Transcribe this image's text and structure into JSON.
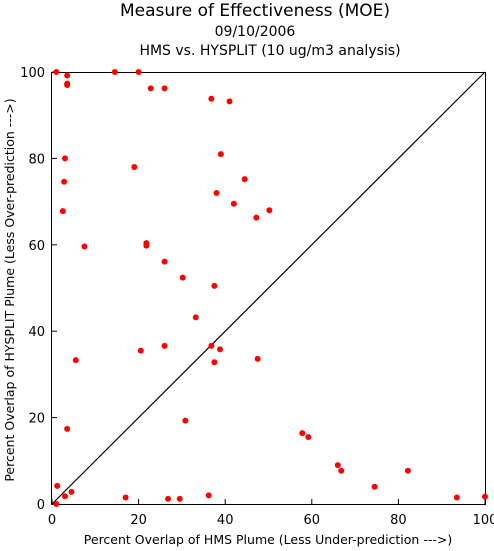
{
  "chart_data": {
    "type": "scatter",
    "title": "Measure of Effectiveness (MOE)",
    "subtitle_date": "09/10/2006",
    "subtitle_analysis": "HMS vs. HYSPLIT  (10 ug/m3 analysis)",
    "xlabel": "Percent Overlap of HMS Plume (Less Under-prediction --->)",
    "ylabel": "Percent Overlap of HYSPLIT Plume (Less Over-prediction --->)",
    "xlim": [
      0,
      100
    ],
    "ylim": [
      0,
      100
    ],
    "xticks": [
      "0",
      "20",
      "40",
      "60",
      "80",
      "100"
    ],
    "yticks": [
      "0",
      "20",
      "40",
      "60",
      "80",
      "100"
    ],
    "grid": false,
    "reference_line": "diagonal y = x",
    "marker_color": "#ff0000",
    "line_color": "#000000",
    "points": [
      [
        1,
        100
      ],
      [
        3.5,
        99.2
      ],
      [
        3.5,
        97.3
      ],
      [
        3.5,
        97
      ],
      [
        14.5,
        100
      ],
      [
        20,
        100
      ],
      [
        22.8,
        96.2
      ],
      [
        26,
        96.2
      ],
      [
        36.8,
        93.8
      ],
      [
        41,
        93.2
      ],
      [
        3,
        80
      ],
      [
        39,
        81
      ],
      [
        19,
        78
      ],
      [
        2.8,
        74.6
      ],
      [
        44.5,
        75.2
      ],
      [
        38,
        72
      ],
      [
        42,
        69.5
      ],
      [
        50.2,
        68
      ],
      [
        2.5,
        67.8
      ],
      [
        47.2,
        66.3
      ],
      [
        7.5,
        59.6
      ],
      [
        21.8,
        59.8
      ],
      [
        21.8,
        60.4
      ],
      [
        26,
        56.1
      ],
      [
        30.2,
        52.4
      ],
      [
        37.5,
        50.5
      ],
      [
        33.2,
        43.2
      ],
      [
        20.5,
        35.5
      ],
      [
        26,
        36.6
      ],
      [
        36.8,
        36.6
      ],
      [
        38.8,
        35.8
      ],
      [
        47.5,
        33.6
      ],
      [
        37.5,
        32.8
      ],
      [
        5.5,
        33.3
      ],
      [
        3.5,
        17.4
      ],
      [
        30.8,
        19.3
      ],
      [
        57.8,
        16.4
      ],
      [
        59.2,
        15.5
      ],
      [
        66,
        9
      ],
      [
        66.8,
        7.7
      ],
      [
        82.2,
        7.7
      ],
      [
        74.5,
        4
      ],
      [
        1.2,
        4.2
      ],
      [
        4.5,
        2.8
      ],
      [
        3,
        1.8
      ],
      [
        1,
        0
      ],
      [
        17,
        1.5
      ],
      [
        26.8,
        1.2
      ],
      [
        29.5,
        1.2
      ],
      [
        36.2,
        2
      ],
      [
        93.5,
        1.5
      ],
      [
        100,
        1.7
      ]
    ]
  }
}
